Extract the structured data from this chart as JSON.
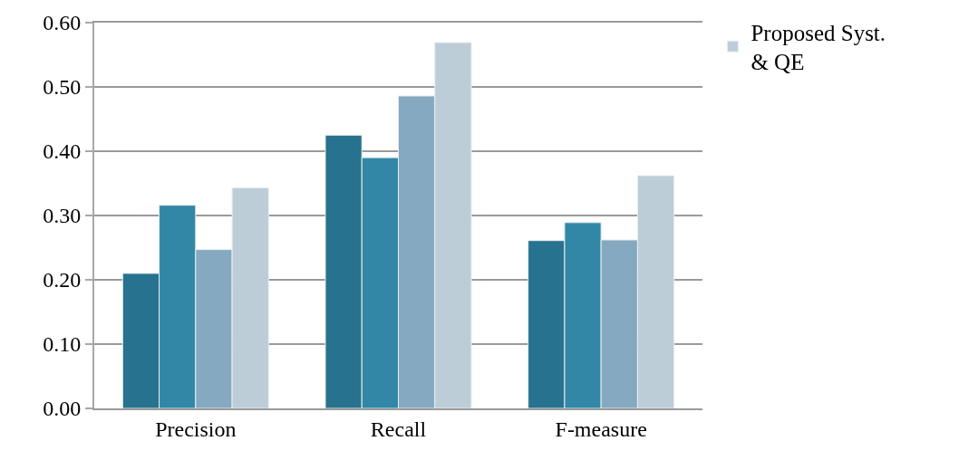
{
  "chart_data": {
    "type": "bar",
    "categories": [
      "Precision",
      "Recall",
      "F-measure"
    ],
    "series": [
      {
        "color": "#27728e",
        "values": [
          0.21,
          0.425,
          0.261
        ]
      },
      {
        "color": "#3287a7",
        "values": [
          0.316,
          0.39,
          0.289
        ]
      },
      {
        "color": "#84a9c0",
        "values": [
          0.247,
          0.486,
          0.262
        ]
      },
      {
        "name": "Proposed Syst. & QE",
        "color": "#bccdd8",
        "values": [
          0.343,
          0.569,
          0.362
        ]
      }
    ],
    "ylim": [
      0,
      0.6
    ],
    "yticks": [
      {
        "value": 0,
        "label": "0.00"
      },
      {
        "value": 0.1,
        "label": "0.10"
      },
      {
        "value": 0.2,
        "label": "0.20"
      },
      {
        "value": 0.3,
        "label": "0.30"
      },
      {
        "value": 0.4,
        "label": "0.40"
      },
      {
        "value": 0.5,
        "label": "0.50"
      },
      {
        "value": 0.6,
        "label": "0.60"
      }
    ],
    "grid": "y",
    "legend": "top right"
  }
}
